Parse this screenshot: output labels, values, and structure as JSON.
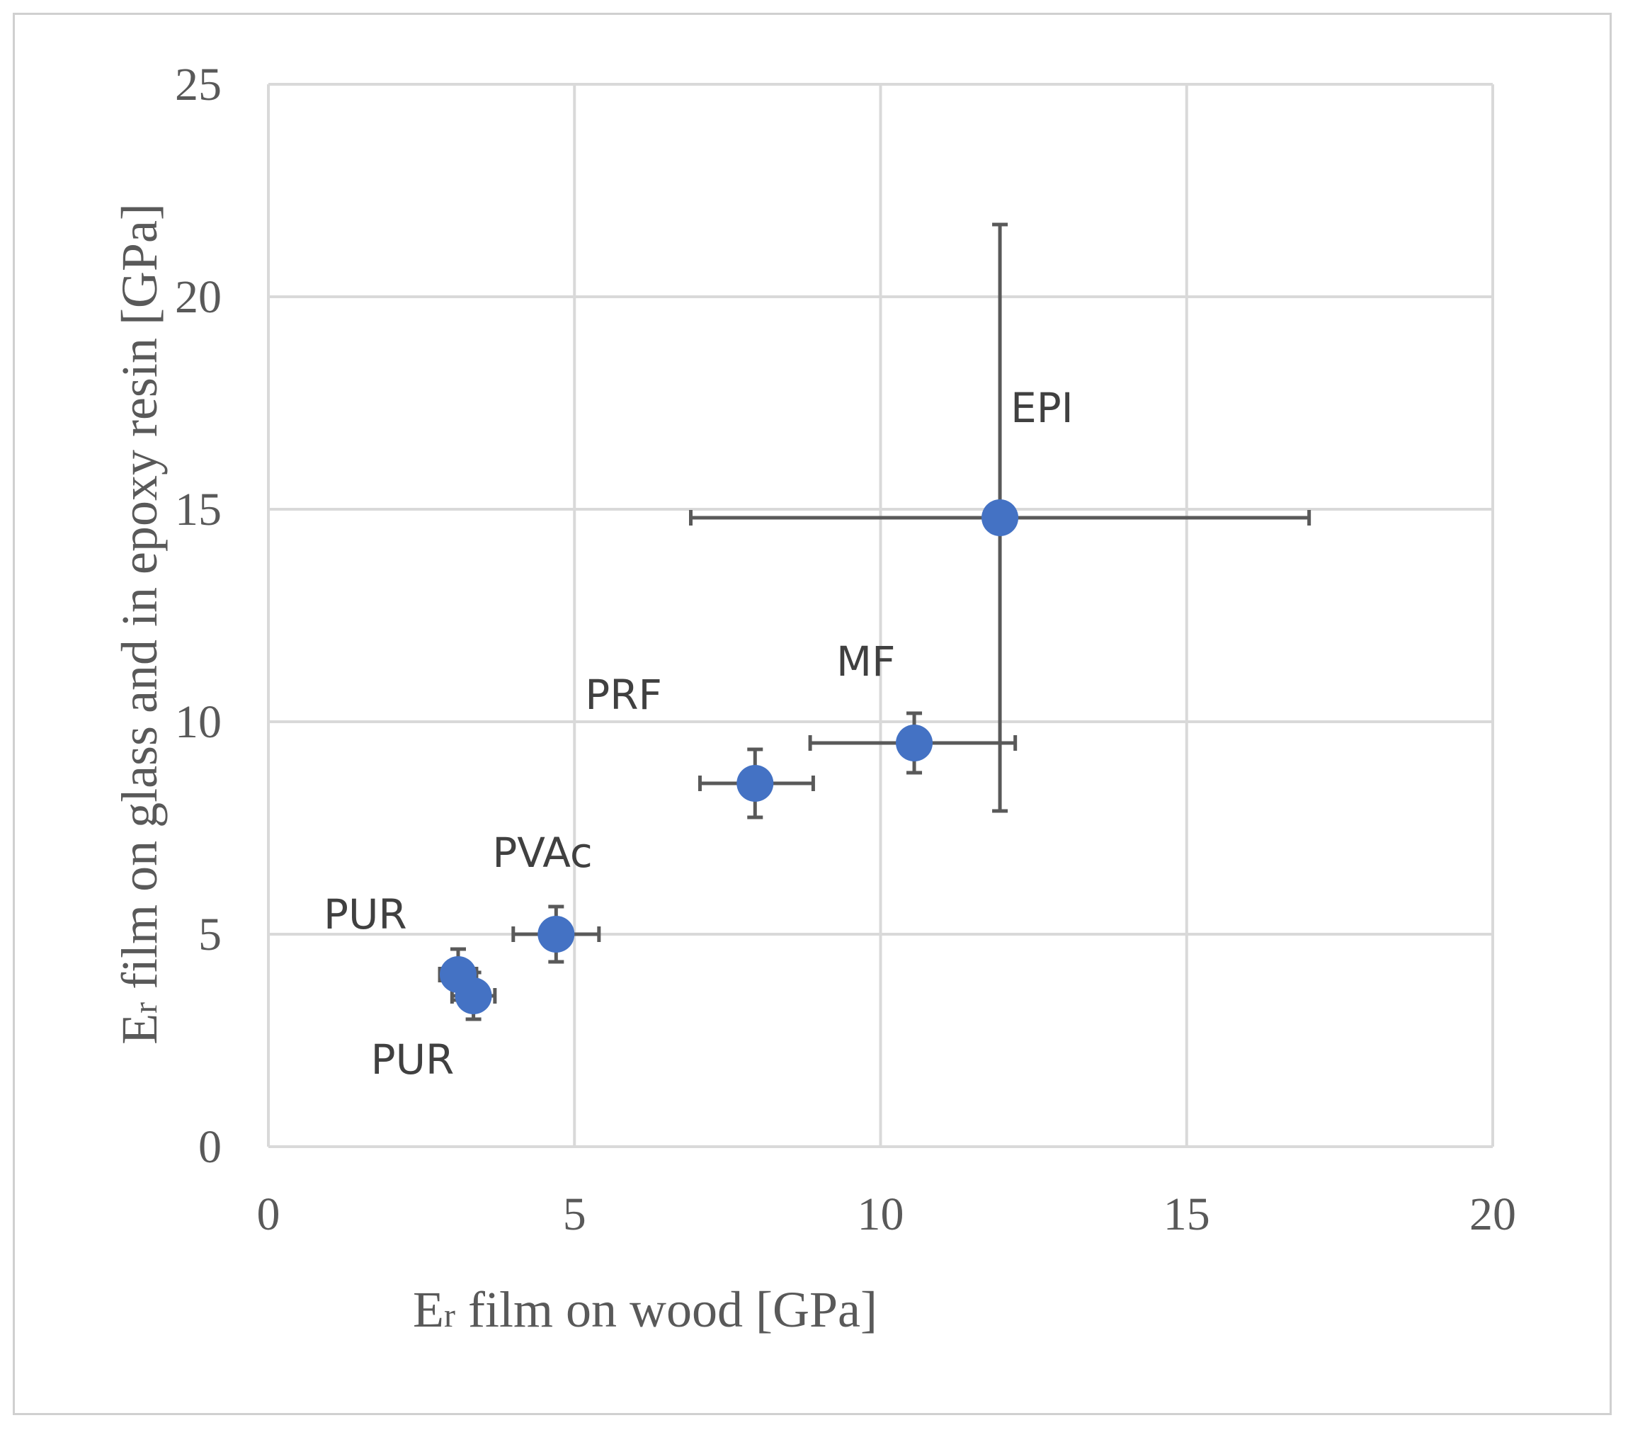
{
  "chart_data": {
    "type": "scatter",
    "title": "",
    "xlabel": {
      "main": "E",
      "sub": "r",
      "rest": " film on wood [GPa]"
    },
    "ylabel": {
      "main": "E",
      "sub": "r",
      "rest": " film on glass and in epoxy resin [GPa]"
    },
    "xlim": [
      0,
      20
    ],
    "ylim": [
      0,
      25
    ],
    "xticks": [
      0,
      5,
      10,
      15,
      20
    ],
    "yticks": [
      0,
      5,
      10,
      15,
      20,
      25
    ],
    "grid": true,
    "marker_color": "#4472C4",
    "errorbar_color": "#595959",
    "points": [
      {
        "label": "EPI",
        "x": 11.95,
        "y": 14.8,
        "x_err": [
          5.05,
          5.05
        ],
        "y_err": [
          6.9,
          6.9
        ]
      },
      {
        "label": "MF",
        "x": 10.55,
        "y": 9.5,
        "x_err": [
          1.7,
          1.65
        ],
        "y_err": [
          0.7,
          0.7
        ]
      },
      {
        "label": "PRF",
        "x": 7.95,
        "y": 8.55,
        "x_err": [
          0.9,
          0.95
        ],
        "y_err": [
          0.8,
          0.8
        ]
      },
      {
        "label": "PVAc",
        "x": 4.7,
        "y": 5.0,
        "x_err": [
          0.7,
          0.7
        ],
        "y_err": [
          0.65,
          0.65
        ]
      },
      {
        "label": "PUR",
        "x": 3.1,
        "y": 4.05,
        "x_err": [
          0.3,
          0.3
        ],
        "y_err": [
          0.6,
          0.6
        ]
      },
      {
        "label": "PUR",
        "x": 3.35,
        "y": 3.55,
        "x_err": [
          0.35,
          0.35
        ],
        "y_err": [
          0.55,
          0.55
        ]
      }
    ]
  }
}
